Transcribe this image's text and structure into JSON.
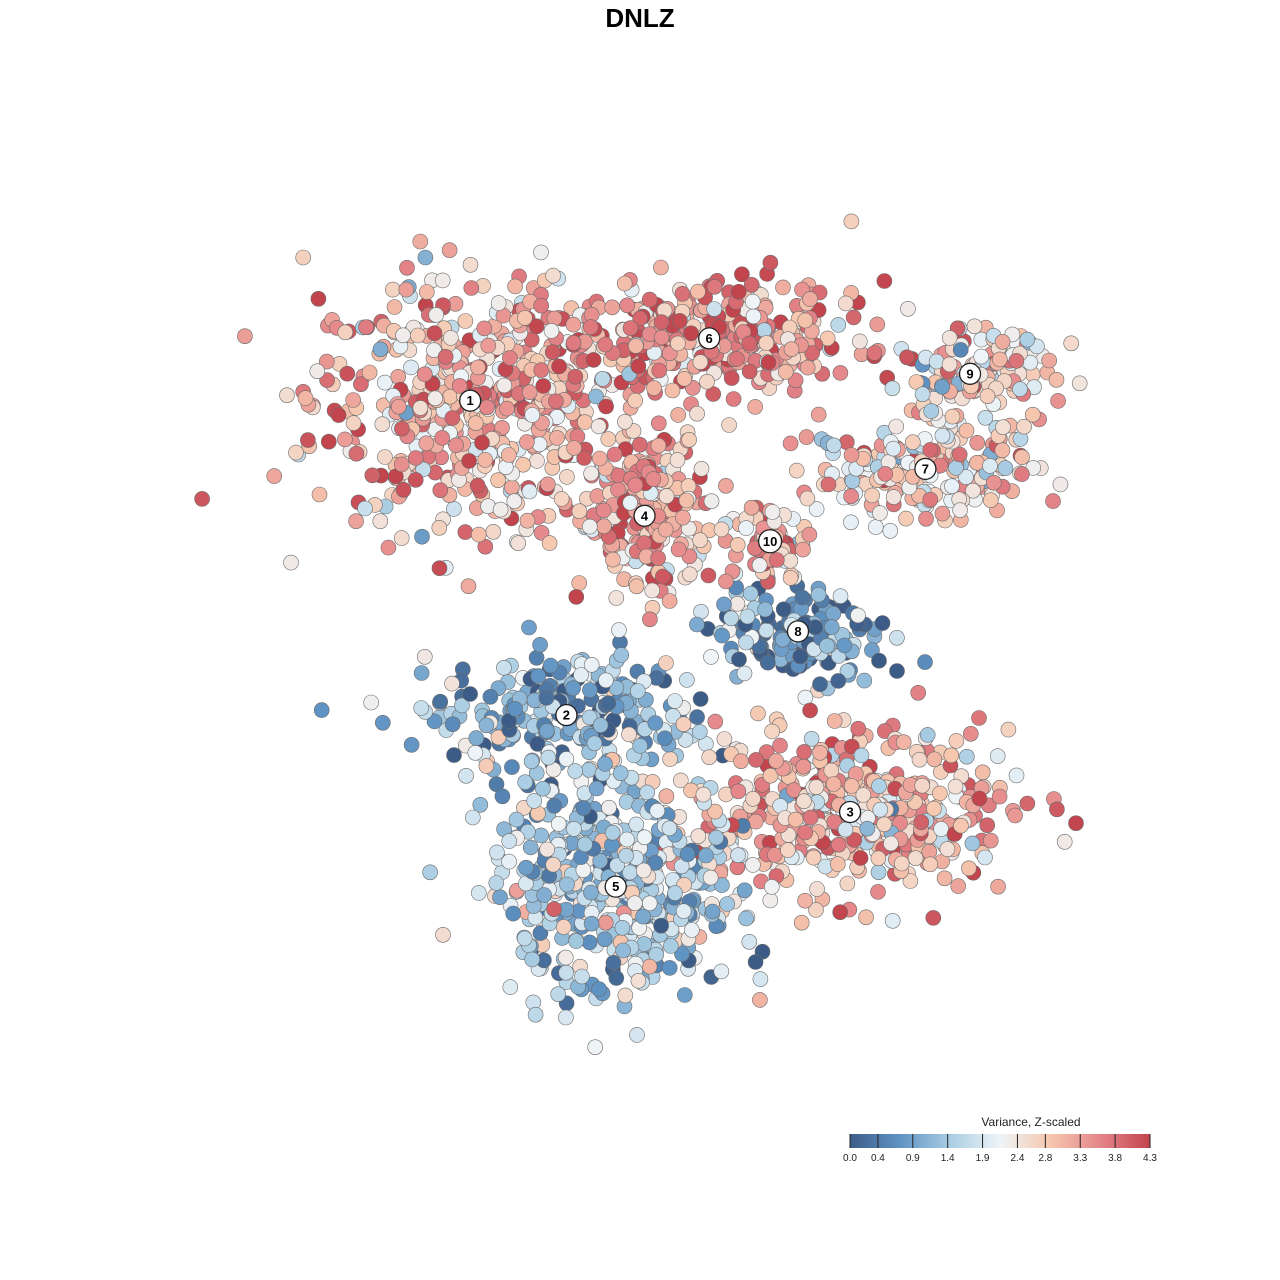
{
  "chart_data": {
    "type": "scatter",
    "title": "DNLZ",
    "xlabel": "",
    "ylabel": "",
    "xlim": [
      -1,
      1
    ],
    "ylim": [
      -1,
      1
    ],
    "grid": false,
    "color_variable": "Variance, Z-scaled",
    "color_scale": {
      "min": 0.0,
      "max": 4.3,
      "ticks": [
        0.0,
        0.4,
        0.9,
        1.4,
        1.9,
        2.4,
        2.8,
        3.3,
        3.8,
        4.3
      ],
      "tick_labels": [
        "0.0",
        "0.4",
        "0.9",
        "1.4",
        "1.9",
        "2.4",
        "2.8",
        "3.3",
        "3.8",
        "4.3"
      ],
      "colors": [
        "#3c5c87",
        "#5f93c3",
        "#a9cde3",
        "#eef4f8",
        "#f6c7ae",
        "#e5868a",
        "#c2444d"
      ],
      "legend_position": "bottom-right"
    },
    "clusters": [
      {
        "label": "1",
        "x": -0.419,
        "y": 0.515,
        "value": 3.0
      },
      {
        "label": "2",
        "x": -0.212,
        "y": -0.176,
        "value": 1.1
      },
      {
        "label": "3",
        "x": 0.398,
        "y": -0.389,
        "value": 2.9
      },
      {
        "label": "4",
        "x": -0.044,
        "y": 0.262,
        "value": 3.1
      },
      {
        "label": "5",
        "x": -0.106,
        "y": -0.553,
        "value": 1.5
      },
      {
        "label": "6",
        "x": 0.095,
        "y": 0.652,
        "value": 3.4
      },
      {
        "label": "7",
        "x": 0.56,
        "y": 0.365,
        "value": 2.6
      },
      {
        "label": "8",
        "x": 0.286,
        "y": 0.008,
        "value": 0.8
      },
      {
        "label": "9",
        "x": 0.656,
        "y": 0.574,
        "value": 2.5
      },
      {
        "label": "10",
        "x": 0.226,
        "y": 0.206,
        "value": 3.0
      }
    ]
  }
}
